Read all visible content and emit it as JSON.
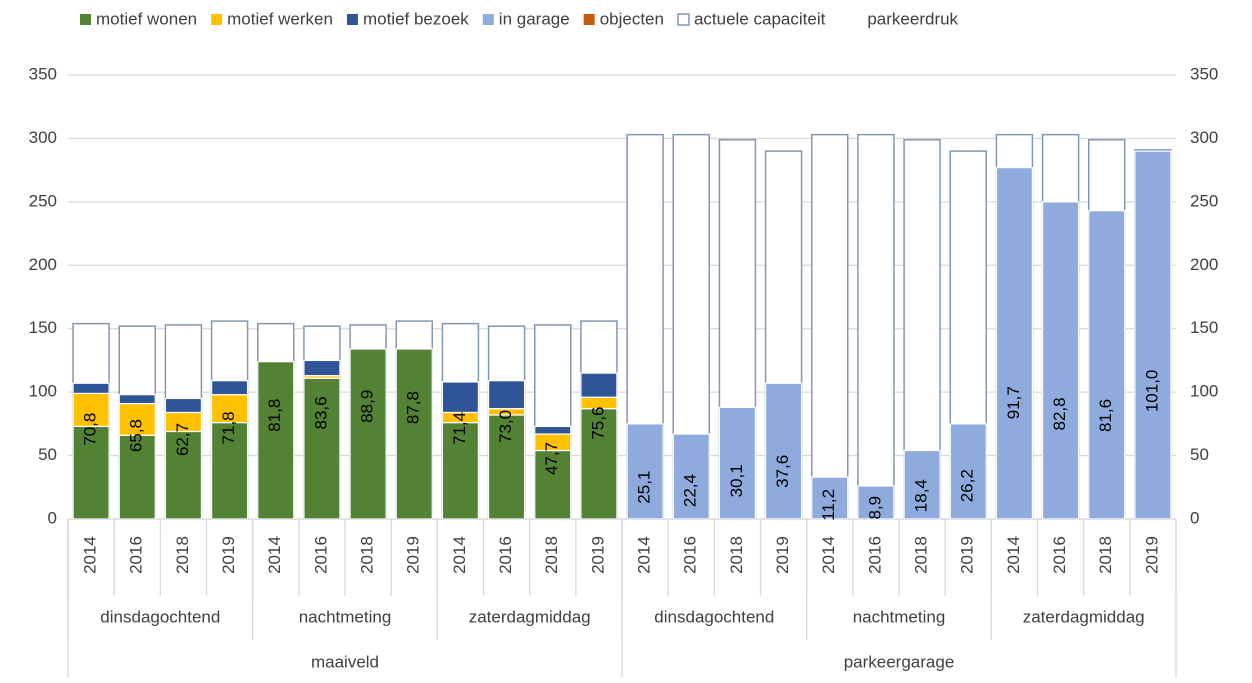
{
  "chart_data": {
    "type": "bar",
    "stacked": true,
    "categories": [
      "2014",
      "2016",
      "2018",
      "2019",
      "2014",
      "2016",
      "2018",
      "2019",
      "2014",
      "2016",
      "2018",
      "2019",
      "2014",
      "2016",
      "2018",
      "2019",
      "2014",
      "2016",
      "2018",
      "2019",
      "2014",
      "2016",
      "2018",
      "2019"
    ],
    "category_groups": [
      [
        "dinsdagochtend",
        "nachtmeting",
        "zaterdagmiddag",
        "dinsdagochtend",
        "nachtmeting",
        "zaterdagmiddag"
      ],
      [
        "maaiveld",
        "parkeergarage"
      ]
    ],
    "series": [
      {
        "name": "motief wonen",
        "color": "#548235",
        "values": [
          73,
          66,
          69,
          76,
          124,
          111,
          134,
          134,
          76,
          82,
          54,
          87,
          null,
          null,
          null,
          null,
          null,
          null,
          null,
          null,
          null,
          null,
          null,
          null
        ]
      },
      {
        "name": "motief werken",
        "color": "#ffc000",
        "values": [
          26,
          25,
          15,
          22,
          null,
          2,
          null,
          null,
          8,
          5,
          13,
          9,
          null,
          null,
          null,
          null,
          null,
          null,
          null,
          null,
          null,
          null,
          null,
          null
        ]
      },
      {
        "name": "motief bezoek",
        "color": "#2f5597",
        "values": [
          8,
          7,
          11,
          11,
          null,
          12,
          null,
          null,
          24,
          22,
          6,
          19,
          null,
          null,
          null,
          null,
          null,
          null,
          null,
          null,
          null,
          null,
          null,
          null
        ]
      },
      {
        "name": "in garage",
        "color": "#8faadc",
        "values": [
          null,
          null,
          null,
          null,
          null,
          null,
          null,
          null,
          null,
          null,
          null,
          null,
          75,
          67,
          88,
          107,
          33,
          26,
          54,
          75,
          277,
          250,
          243,
          290
        ]
      },
      {
        "name": "objecten",
        "color": "#c55a11",
        "values": [
          null,
          null,
          null,
          null,
          null,
          null,
          null,
          null,
          null,
          null,
          null,
          null,
          null,
          null,
          null,
          null,
          null,
          null,
          null,
          null,
          null,
          null,
          null,
          null
        ]
      },
      {
        "name": "actuele capaciteit",
        "color": "#8497b0",
        "overlay": true,
        "values": [
          154,
          152,
          153,
          156,
          154,
          152,
          153,
          156,
          154,
          152,
          153,
          156,
          303,
          303,
          299,
          290,
          303,
          303,
          299,
          290,
          303,
          303,
          299,
          291
        ]
      },
      {
        "name": "parkeerdruk",
        "axis": "y2",
        "labels_only": true,
        "values": [
          70.8,
          65.8,
          62.7,
          71.8,
          81.8,
          83.6,
          88.9,
          87.8,
          71.4,
          73.0,
          47.7,
          75.6,
          25.1,
          22.4,
          30.1,
          37.6,
          11.2,
          8.9,
          18.4,
          26.2,
          91.7,
          82.8,
          81.6,
          101.0
        ],
        "value_labels": [
          "70,8",
          "65,8",
          "62,7",
          "71,8",
          "81,8",
          "83,6",
          "88,9",
          "87,8",
          "71,4",
          "73,0",
          "47,7",
          "75,6",
          "25,1",
          "22,4",
          "30,1",
          "37,6",
          "11,2",
          "8,9",
          "18,4",
          "26,2",
          "91,7",
          "82,8",
          "81,6",
          "101,0"
        ]
      }
    ],
    "ylim": [
      0,
      350
    ],
    "yticks": [
      0,
      50,
      100,
      150,
      200,
      250,
      300,
      350
    ],
    "y2lim": [
      0,
      350
    ],
    "y2ticks": [
      0,
      50,
      100,
      150,
      200,
      250,
      300,
      350
    ],
    "grid": true,
    "legend": "top"
  }
}
